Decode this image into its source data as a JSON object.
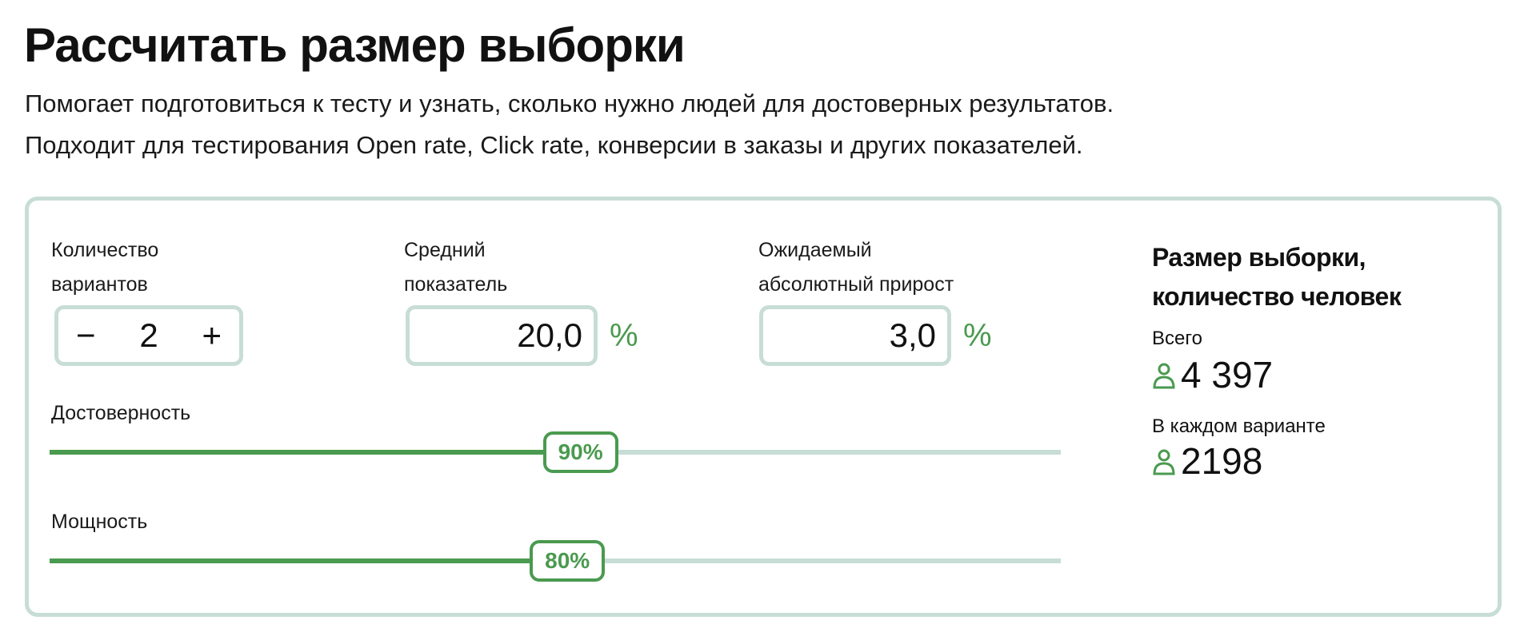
{
  "header": {
    "title": "Рассчитать размер выборки",
    "subtitle_lines": [
      "Помогает подготовиться к тесту и узнать, сколько нужно людей для достоверных результатов.",
      "Подходит для тестирования Open rate, Click rate, конверсии в заказы и других показателей."
    ]
  },
  "inputs": {
    "variants": {
      "label_1": "Количество",
      "label_2": "вариантов",
      "value": "2",
      "minus": "−",
      "plus": "+"
    },
    "average": {
      "label_1": "Средний",
      "label_2": "показатель",
      "value": "20,0",
      "unit": "%"
    },
    "uplift": {
      "label_1": "Ожидаемый",
      "label_2": "абсолютный прирост",
      "value": "3,0",
      "unit": "%"
    }
  },
  "sliders": {
    "confidence": {
      "label": "Достоверность",
      "value_label": "90%",
      "fraction": 0.525
    },
    "power": {
      "label": "Мощность",
      "value_label": "80%",
      "fraction": 0.512
    }
  },
  "result": {
    "title_1": "Размер выборки,",
    "title_2": "количество человек",
    "total_label": "Всего",
    "total_value": "4 397",
    "per_variant_label": "В каждом варианте",
    "per_variant_value": "2198",
    "icon": "person-icon"
  },
  "colors": {
    "accent": "#4a9a4f",
    "border": "#c7ddd6"
  }
}
